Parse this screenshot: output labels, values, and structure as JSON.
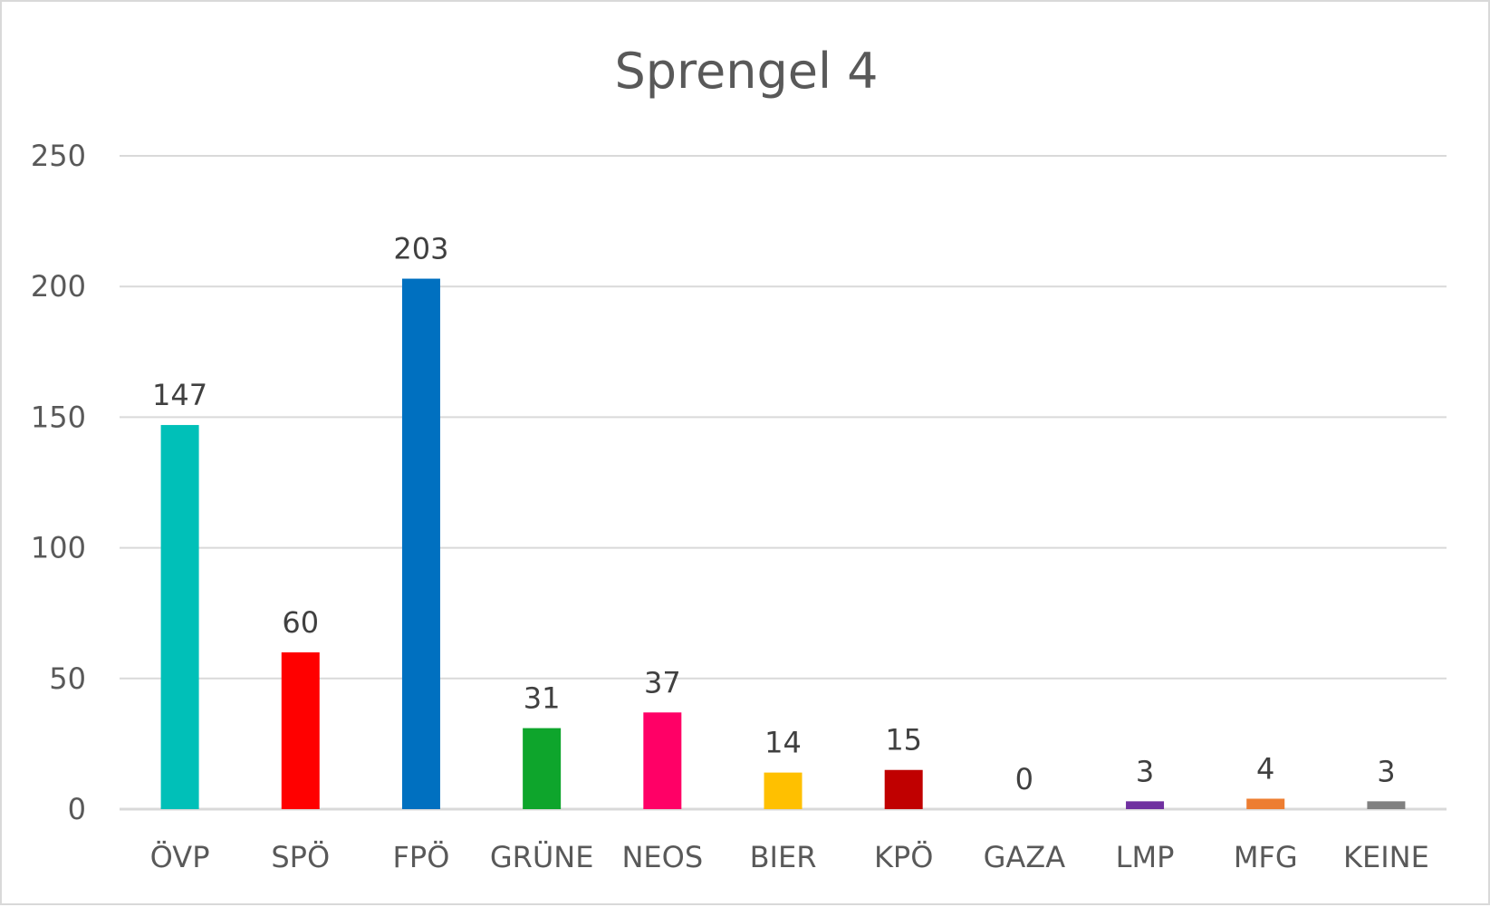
{
  "chart_data": {
    "type": "bar",
    "title": "Sprengel 4",
    "xlabel": "",
    "ylabel": "",
    "categories": [
      "ÖVP",
      "SPÖ",
      "FPÖ",
      "GRÜNE",
      "NEOS",
      "BIER",
      "KPÖ",
      "GAZA",
      "LMP",
      "MFG",
      "KEINE"
    ],
    "values": [
      147,
      60,
      203,
      31,
      37,
      14,
      15,
      0,
      3,
      4,
      3
    ],
    "colors": [
      "#00c0b8",
      "#ff0000",
      "#0070c0",
      "#0ea52c",
      "#ff0066",
      "#ffc000",
      "#c00000",
      "#a6a6a6",
      "#7030a0",
      "#ed7d31",
      "#808080"
    ],
    "ylim": [
      0,
      250
    ],
    "yticks": [
      0,
      50,
      100,
      150,
      200,
      250
    ],
    "grid": true,
    "legend": "none",
    "data_labels": true
  }
}
